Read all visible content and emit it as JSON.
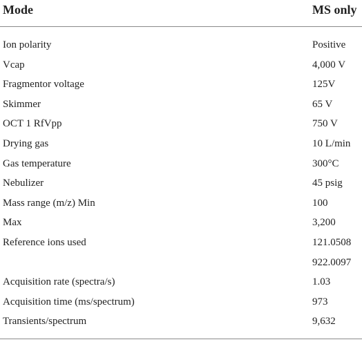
{
  "table": {
    "header": [
      "Mode",
      "MS only"
    ],
    "rows": [
      [
        "Ion polarity",
        "Positive"
      ],
      [
        "Vcap",
        "4,000 V"
      ],
      [
        "Fragmentor voltage",
        "125V"
      ],
      [
        "Skimmer",
        "65 V"
      ],
      [
        "OCT 1 RfVpp",
        "750 V"
      ],
      [
        "Drying gas",
        "10 L/min"
      ],
      [
        "Gas temperature",
        "300°C"
      ],
      [
        "Nebulizer",
        "45 psig"
      ],
      [
        "Mass range (m/z) Min",
        "100"
      ],
      [
        "Max",
        "3,200"
      ],
      [
        "Reference ions used",
        "121.0508"
      ],
      [
        null,
        "922.0097"
      ],
      [
        "Acquisition rate (spectra/s)",
        "1.03"
      ],
      [
        "Acquisition time (ms/spectrum)",
        "973"
      ],
      [
        "Transients/spectrum",
        "9,632"
      ]
    ]
  }
}
